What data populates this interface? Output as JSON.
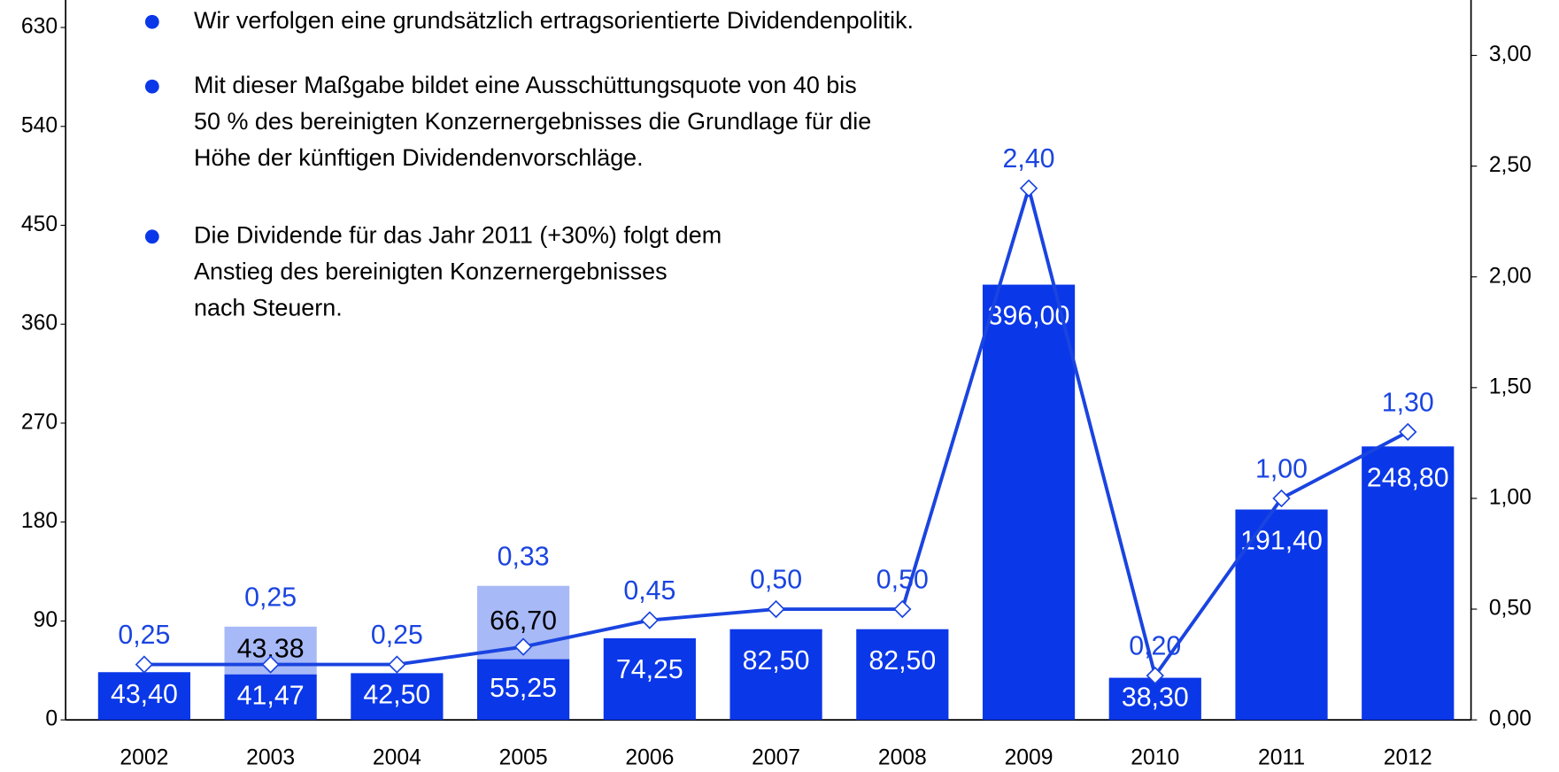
{
  "chart_data": {
    "type": "bar",
    "categories": [
      "2002",
      "2003",
      "2004",
      "2005",
      "2006",
      "2007",
      "2008",
      "2009",
      "2010",
      "2011",
      "2012"
    ],
    "series": [
      {
        "color": "#0a37e8",
        "values": [
          43.4,
          41.47,
          42.5,
          55.25,
          74.25,
          82.5,
          82.5,
          396.0,
          38.3,
          191.4,
          248.8
        ],
        "value_labels": [
          "43,40",
          "41,47",
          "42,50",
          "55,25",
          "74,25",
          "82,50",
          "82,50",
          "396,00",
          "38,30",
          "191,40",
          "248,80"
        ]
      },
      {
        "color": "#a7b9f7",
        "values": [
          null,
          43.38,
          null,
          66.7,
          null,
          null,
          null,
          null,
          null,
          null,
          null
        ],
        "value_labels": [
          null,
          "43,38",
          null,
          "66,70",
          null,
          null,
          null,
          null,
          null,
          null,
          null
        ]
      },
      {
        "type": "line",
        "axis": "y2",
        "color": "#1a44e0",
        "values": [
          0.25,
          0.25,
          0.25,
          0.33,
          0.45,
          0.5,
          0.5,
          2.4,
          0.2,
          1.0,
          1.3
        ],
        "value_labels": [
          "0,25",
          "0,25",
          "0,25",
          "0,33",
          "0,45",
          "0,50",
          "0,50",
          "2,40",
          "0,20",
          "1,00",
          "1,30"
        ]
      }
    ],
    "ylim": [
      0,
      655
    ],
    "yticks": [
      0,
      90,
      180,
      270,
      360,
      450,
      540,
      630
    ],
    "y2lim": [
      0,
      3.25
    ],
    "y2ticks": [
      {
        "value": 0,
        "label": "0,00"
      },
      {
        "value": 0.5,
        "label": "0,50"
      },
      {
        "value": 1,
        "label": "1,00"
      },
      {
        "value": 1.5,
        "label": "1,50"
      },
      {
        "value": 2,
        "label": "2,00"
      },
      {
        "value": 2.5,
        "label": "2,50"
      },
      {
        "value": 3,
        "label": "3,00"
      }
    ],
    "annotations": [
      [
        "Wir verfolgen eine grundsätzlich ertragsorientierte Dividendenpolitik."
      ],
      [
        "Mit dieser Maßgabe bildet eine Ausschüttungsquote von 40 bis",
        "50 % des bereinigten Konzernergebnisses die Grundlage für die",
        "Höhe der künftigen Dividendenvorschläge."
      ],
      [
        "Die Dividende für das Jahr 2011 (+30%) folgt dem",
        "Anstieg des bereinigten Konzernergebnisses",
        "nach Steuern."
      ]
    ]
  }
}
